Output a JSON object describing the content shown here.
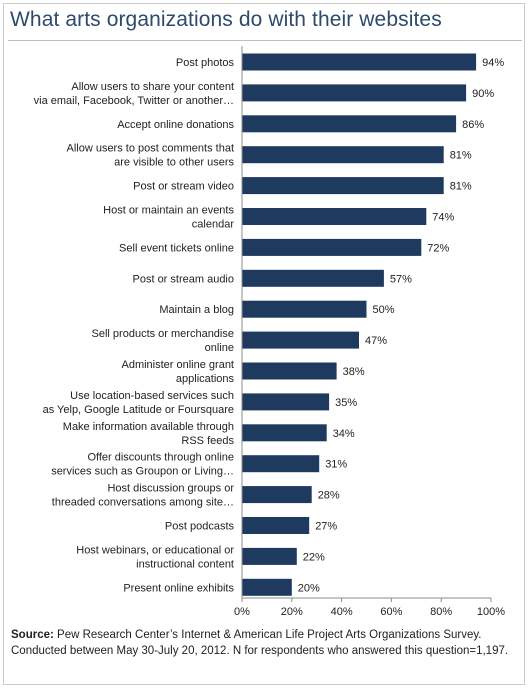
{
  "title": "What arts organizations do with their websites",
  "source": {
    "label": "Source:",
    "text": "Pew Research Center’s Internet & American Life Project Arts Organizations Survey. Conducted between May 30-July 20, 2012. N for respondents who answered this question=1,197."
  },
  "colors": {
    "bar": "#1f3a5f",
    "title": "#2d4a6d",
    "axis": "#8c8c8c"
  },
  "chart_data": {
    "type": "bar",
    "orientation": "horizontal",
    "title": "What arts organizations do with their websites",
    "xlim": [
      0,
      100
    ],
    "xticks": [
      "0%",
      "20%",
      "40%",
      "60%",
      "80%",
      "100%"
    ],
    "grid": false,
    "legend": "none",
    "categories": [
      [
        "Post photos"
      ],
      [
        "Allow users to share your content",
        "via email, Facebook, Twitter or another…"
      ],
      [
        "Accept online donations"
      ],
      [
        "Allow users to post comments that",
        "are visible to other users"
      ],
      [
        "Post or stream video"
      ],
      [
        "Host or maintain an events",
        "calendar"
      ],
      [
        "Sell event tickets online"
      ],
      [
        "Post or stream audio"
      ],
      [
        "Maintain a blog"
      ],
      [
        "Sell products or merchandise",
        "online"
      ],
      [
        "Administer online grant",
        "applications"
      ],
      [
        "Use location-based services such",
        "as Yelp, Google Latitude or Foursquare"
      ],
      [
        "Make information available through",
        "RSS feeds"
      ],
      [
        "Offer discounts through online",
        "services such as Groupon or Living…"
      ],
      [
        "Host discussion groups or",
        "threaded conversations among site…"
      ],
      [
        "Post podcasts"
      ],
      [
        "Host webinars, or educational or",
        "instructional content"
      ],
      [
        "Present online exhibits"
      ]
    ],
    "values": [
      94,
      90,
      86,
      81,
      81,
      74,
      72,
      57,
      50,
      47,
      38,
      35,
      34,
      31,
      28,
      27,
      22,
      20
    ],
    "value_labels": [
      "94%",
      "90%",
      "86%",
      "81%",
      "81%",
      "74%",
      "72%",
      "57%",
      "50%",
      "47%",
      "38%",
      "35%",
      "34%",
      "31%",
      "28%",
      "27%",
      "22%",
      "20%"
    ]
  }
}
